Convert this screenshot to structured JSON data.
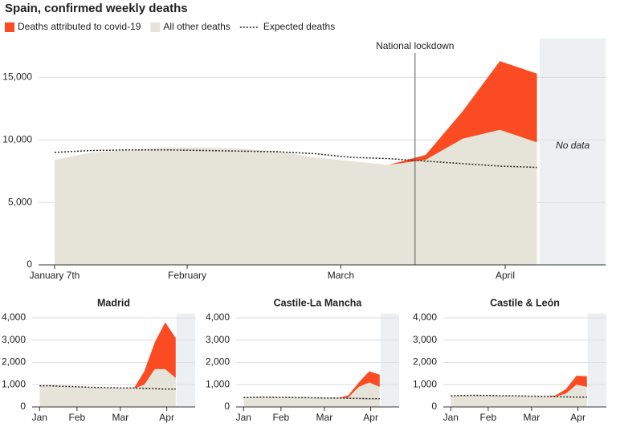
{
  "chart_data": [
    {
      "type": "area",
      "title": "Spain, confirmed weekly deaths",
      "legend": "top-left",
      "grid": true,
      "x": [
        7,
        14,
        21,
        28,
        35,
        42,
        49,
        56,
        63,
        70,
        77,
        84,
        91,
        98
      ],
      "xlim": [
        3,
        111
      ],
      "xticks": [
        {
          "value": 7,
          "label": "January 7th"
        },
        {
          "value": 32,
          "label": "February"
        },
        {
          "value": 61,
          "label": "March"
        },
        {
          "value": 92,
          "label": "April"
        }
      ],
      "ylim": [
        0,
        18300
      ],
      "yticks": [
        0,
        {
          "value": 5000,
          "label": "5,000"
        },
        {
          "value": 10000,
          "label": "10,000"
        },
        {
          "value": 15000,
          "label": "15,000"
        }
      ],
      "annotations": [
        {
          "label": "National lockdown",
          "x": 75
        }
      ],
      "no_data": {
        "label": "No data",
        "x": [
          98.5,
          111
        ]
      },
      "series": [
        {
          "name": "Deaths attributed to covid-19",
          "color": "#fb4b22",
          "stacked_on": 1,
          "values": [
            0,
            0,
            0,
            0,
            0,
            0,
            0,
            0,
            0,
            0,
            400,
            2200,
            5500,
            5500
          ]
        },
        {
          "name": "All other deaths",
          "color": "#e6e4d8",
          "values": [
            8400,
            9000,
            9200,
            9400,
            9400,
            9300,
            9100,
            8600,
            8300,
            8000,
            8400,
            10100,
            10800,
            9800
          ]
        },
        {
          "name": "Expected deaths",
          "color": "#222222",
          "style": "dotted",
          "values": [
            9000,
            9150,
            9200,
            9200,
            9150,
            9100,
            9050,
            8900,
            8600,
            8500,
            8300,
            8100,
            7900,
            7800
          ]
        }
      ]
    },
    {
      "type": "area",
      "title": "Madrid",
      "grid": true,
      "x": [
        7,
        14,
        21,
        28,
        35,
        42,
        49,
        56,
        63,
        70,
        77,
        84,
        91,
        98
      ],
      "xlim": [
        2,
        111
      ],
      "xticks": [
        {
          "value": 7,
          "label": "Jan"
        },
        {
          "value": 32,
          "label": "Feb"
        },
        {
          "value": 61,
          "label": "Mar"
        },
        {
          "value": 92,
          "label": "Apr"
        }
      ],
      "ylim": [
        0,
        4200
      ],
      "yticks": [
        0,
        {
          "value": 1000,
          "label": "1,000"
        },
        {
          "value": 2000,
          "label": "2,000"
        },
        {
          "value": 3000,
          "label": "3,000"
        },
        {
          "value": 4000,
          "label": "4,000"
        }
      ],
      "no_data": {
        "x": [
          98.5,
          111
        ]
      },
      "series": [
        {
          "color": "#fb4b22",
          "stacked_on": 1,
          "values": [
            0,
            0,
            0,
            0,
            0,
            0,
            0,
            0,
            0,
            0,
            600,
            1200,
            2100,
            1800
          ]
        },
        {
          "color": "#e6e4d8",
          "values": [
            950,
            1000,
            950,
            900,
            900,
            880,
            870,
            860,
            850,
            830,
            1000,
            1700,
            1700,
            1300
          ]
        },
        {
          "color": "#222222",
          "style": "dotted",
          "values": [
            950,
            950,
            930,
            920,
            900,
            880,
            870,
            860,
            850,
            850,
            830,
            820,
            800,
            800
          ]
        }
      ]
    },
    {
      "type": "area",
      "title": "Castile-La Mancha",
      "grid": true,
      "x": [
        7,
        14,
        21,
        28,
        35,
        42,
        49,
        56,
        63,
        70,
        77,
        84,
        91,
        98
      ],
      "xlim": [
        2,
        111
      ],
      "xticks": [
        {
          "value": 7,
          "label": "Jan"
        },
        {
          "value": 32,
          "label": "Feb"
        },
        {
          "value": 61,
          "label": "Mar"
        },
        {
          "value": 92,
          "label": "Apr"
        }
      ],
      "ylim": [
        0,
        4200
      ],
      "yticks": [
        0,
        {
          "value": 1000,
          "label": "1,000"
        },
        {
          "value": 2000,
          "label": "2,000"
        },
        {
          "value": 3000,
          "label": "3,000"
        },
        {
          "value": 4000,
          "label": "4,000"
        }
      ],
      "no_data": {
        "x": [
          98.5,
          111
        ]
      },
      "series": [
        {
          "color": "#fb4b22",
          "stacked_on": 1,
          "values": [
            0,
            0,
            0,
            0,
            0,
            0,
            0,
            0,
            0,
            0,
            100,
            200,
            500,
            550
          ]
        },
        {
          "color": "#e6e4d8",
          "values": [
            420,
            450,
            480,
            450,
            450,
            440,
            430,
            420,
            410,
            400,
            420,
            900,
            1100,
            900
          ]
        },
        {
          "color": "#222222",
          "style": "dotted",
          "values": [
            420,
            430,
            440,
            430,
            430,
            420,
            420,
            410,
            400,
            400,
            390,
            380,
            370,
            370
          ]
        }
      ]
    },
    {
      "type": "area",
      "title": "Castile & León",
      "grid": true,
      "x": [
        7,
        14,
        21,
        28,
        35,
        42,
        49,
        56,
        63,
        70,
        77,
        84,
        91,
        98
      ],
      "xlim": [
        2,
        111
      ],
      "xticks": [
        {
          "value": 7,
          "label": "Jan"
        },
        {
          "value": 32,
          "label": "Feb"
        },
        {
          "value": 61,
          "label": "Mar"
        },
        {
          "value": 92,
          "label": "Apr"
        }
      ],
      "ylim": [
        0,
        4200
      ],
      "yticks": [
        0,
        {
          "value": 1000,
          "label": "1,000"
        },
        {
          "value": 2000,
          "label": "2,000"
        },
        {
          "value": 3000,
          "label": "3,000"
        },
        {
          "value": 4000,
          "label": "4,000"
        }
      ],
      "no_data": {
        "x": [
          98.5,
          111
        ]
      },
      "series": [
        {
          "color": "#fb4b22",
          "stacked_on": 1,
          "values": [
            0,
            0,
            0,
            0,
            0,
            0,
            0,
            0,
            0,
            0,
            50,
            200,
            400,
            480
          ]
        },
        {
          "color": "#e6e4d8",
          "values": [
            500,
            520,
            560,
            540,
            530,
            520,
            510,
            500,
            490,
            480,
            470,
            600,
            1000,
            900
          ]
        },
        {
          "color": "#222222",
          "style": "dotted",
          "values": [
            500,
            510,
            520,
            520,
            510,
            500,
            500,
            490,
            480,
            470,
            460,
            450,
            440,
            440
          ]
        }
      ]
    }
  ]
}
